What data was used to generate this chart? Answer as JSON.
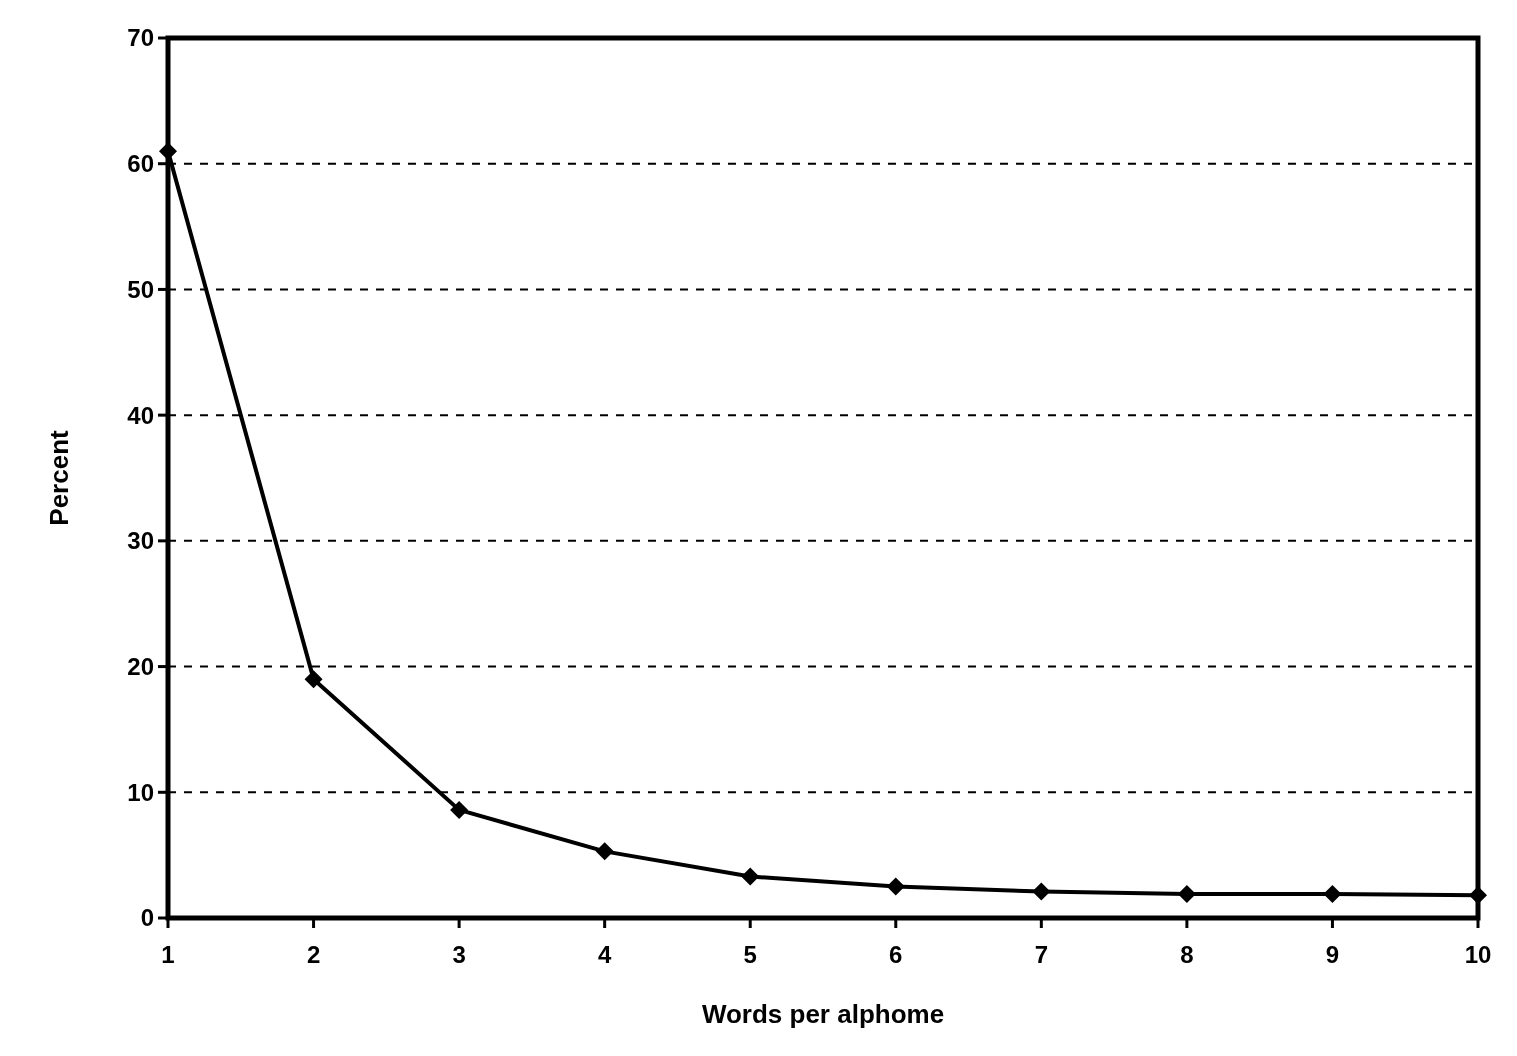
{
  "chart_data": {
    "type": "line",
    "xlabel": "Words per alphome",
    "ylabel": "Percent",
    "x": [
      1,
      2,
      3,
      4,
      5,
      6,
      7,
      8,
      9,
      10
    ],
    "series": [
      {
        "color": "#000000",
        "values": [
          61,
          19,
          8.6,
          5.3,
          3.3,
          2.5,
          2.1,
          1.9,
          1.9,
          1.8
        ]
      }
    ],
    "xlim": [
      1,
      10
    ],
    "xticks": [
      1,
      2,
      3,
      4,
      5,
      6,
      7,
      8,
      9,
      10
    ],
    "ylim": [
      0,
      70
    ],
    "yticks": [
      0,
      10,
      20,
      30,
      40,
      50,
      60,
      70
    ],
    "grid": "y",
    "marker": "diamond",
    "line_style": "solid"
  }
}
